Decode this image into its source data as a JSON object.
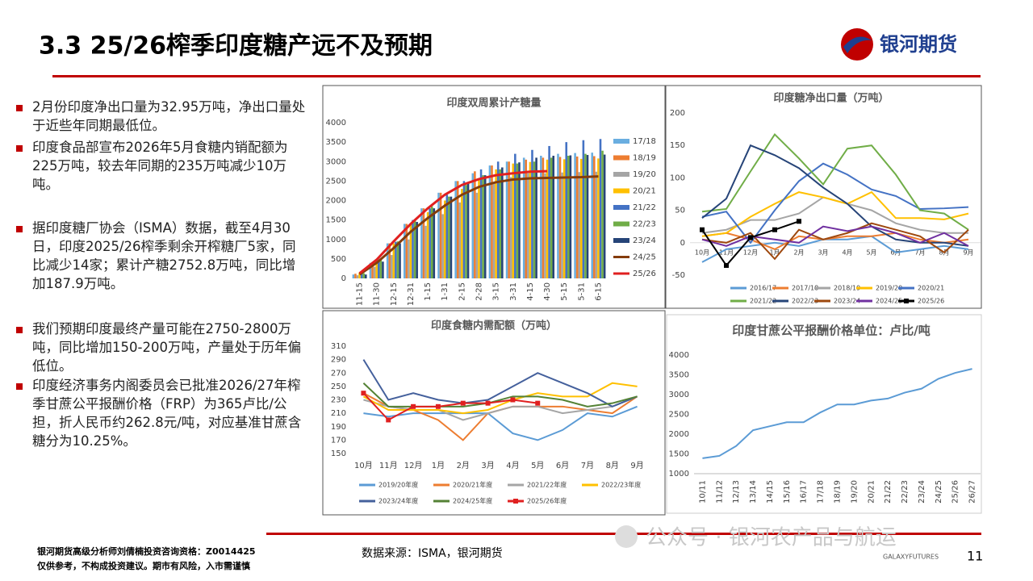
{
  "header": {
    "title": "3.3  25/26榨季印度糖产远不及预期",
    "logo": "银河期货"
  },
  "bullets": [
    "2月份印度净出口量为32.95万吨，净出口量处于近些年同期最低位。",
    "印度食品部宣布2026年5月食糖内销配额为225万吨，较去年同期的235万吨减少10万吨。",
    "据印度糖厂协会（ISMA）数据，截至4月30日，印度2025/26榨季剩余开榨糖厂5家，同比减少14家；累计产糖2752.8万吨，同比增加187.9万吨。",
    "我们预期印度最终产量可能在2750-2800万吨，同比增加150-200万吨，产量处于历年偏低位。",
    "印度经济事务内阁委员会已批准2026/27年榨季甘蔗公平报酬价格（FRP）为365卢比/公担，折人民币约262.8元/吨，对应基准甘蔗含糖分为10.25%。"
  ],
  "footer": {
    "analyst": "银河期货高级分析师刘倩楠投资咨询资格：Z0014425",
    "disclaimer": "仅供参考，不构成投资建议。期市有风险，入市需谨慎",
    "source": "数据来源：ISMA，银河期货",
    "page": "11",
    "watermark": "公众号 · 银河农产品与航运",
    "brand": "GALAXYFUTURES"
  },
  "chart_data": [
    {
      "type": "bar",
      "title": "印度双周累计产糖量",
      "legend": "right",
      "categories": [
        "11-15",
        "11-30",
        "12-15",
        "12-31",
        "1-15",
        "1-31",
        "2-15",
        "2-28",
        "3-15",
        "3-31",
        "4-15",
        "4-30",
        "5-15",
        "5-31",
        "6-15"
      ],
      "ylim": [
        0,
        4000
      ],
      "yticks": [
        0,
        500,
        1000,
        1500,
        2000,
        2500,
        3000,
        3500,
        4000
      ],
      "series": [
        {
          "name": "17/18",
          "color": "#6aaee0",
          "values": [
            100,
            400,
            900,
            1400,
            1800,
            2200,
            2500,
            2700,
            2900,
            3000,
            3100,
            3150,
            3200,
            3220,
            3230
          ]
        },
        {
          "name": "18/19",
          "color": "#ed7d31",
          "values": [
            120,
            420,
            900,
            1400,
            1800,
            2200,
            2500,
            2750,
            2900,
            3000,
            3050,
            3100,
            3120,
            3130,
            3140
          ]
        },
        {
          "name": "19/20",
          "color": "#a5a5a5",
          "values": [
            80,
            300,
            600,
            1000,
            1350,
            1650,
            1950,
            2200,
            2450,
            2600,
            2700,
            2700,
            2720,
            2730,
            2740
          ]
        },
        {
          "name": "20/21",
          "color": "#ffc000",
          "values": [
            150,
            450,
            900,
            1400,
            1700,
            2000,
            2300,
            2550,
            2800,
            2950,
            2990,
            3050,
            3060,
            3070,
            3080
          ]
        },
        {
          "name": "21/22",
          "color": "#4472c4",
          "values": [
            110,
            470,
            940,
            1500,
            1800,
            2150,
            2500,
            2800,
            3000,
            3200,
            3300,
            3400,
            3500,
            3550,
            3580
          ]
        },
        {
          "name": "22/23",
          "color": "#70ad47",
          "values": [
            130,
            480,
            950,
            1500,
            1850,
            2100,
            2400,
            2650,
            2800,
            2950,
            3000,
            3100,
            3150,
            3200,
            3280
          ]
        },
        {
          "name": "23/24",
          "color": "#264478",
          "values": [
            100,
            430,
            900,
            1450,
            1800,
            2100,
            2450,
            2650,
            2850,
            2980,
            3100,
            3150,
            3160,
            3170,
            3180
          ]
        },
        {
          "name": "24/25",
          "color": "#843c0c",
          "type": "line",
          "values": [
            100,
            400,
            780,
            1200,
            1550,
            1870,
            2150,
            2350,
            2470,
            2540,
            2570,
            2580,
            2590,
            2600,
            2620
          ]
        },
        {
          "name": "25/26",
          "color": "#e02020",
          "type": "line",
          "values": [
            130,
            480,
            950,
            1400,
            1800,
            2150,
            2400,
            2550,
            2650,
            2700,
            2740,
            2753,
            null,
            null,
            null
          ]
        }
      ]
    },
    {
      "type": "line",
      "title": "印度糖净出口量（万吨）",
      "legend": "bottom",
      "categories": [
        "10月",
        "11月",
        "12月",
        "1月",
        "2月",
        "3月",
        "4月",
        "5月",
        "6月",
        "7月",
        "8月",
        "9月"
      ],
      "ylim": [
        -50,
        200
      ],
      "yticks": [
        -50,
        0,
        50,
        100,
        150,
        200
      ],
      "series": [
        {
          "name": "2016/17",
          "color": "#5b9bd5",
          "values": [
            -30,
            -10,
            -5,
            0,
            -5,
            5,
            5,
            10,
            -15,
            -10,
            -5,
            -10
          ]
        },
        {
          "name": "2017/18",
          "color": "#ed7d31",
          "values": [
            10,
            15,
            5,
            -10,
            10,
            5,
            10,
            10,
            15,
            5,
            0,
            5
          ]
        },
        {
          "name": "2018/19",
          "color": "#a5a5a5",
          "values": [
            15,
            20,
            35,
            35,
            45,
            70,
            60,
            50,
            30,
            20,
            15,
            15
          ]
        },
        {
          "name": "2019/20",
          "color": "#ffc000",
          "values": [
            10,
            15,
            40,
            60,
            78,
            70,
            60,
            78,
            38,
            38,
            36,
            45
          ]
        },
        {
          "name": "2020/21",
          "color": "#4472c4",
          "values": [
            40,
            48,
            0,
            50,
            95,
            122,
            105,
            82,
            72,
            52,
            53,
            55
          ]
        },
        {
          "name": "2021/22",
          "color": "#70ad47",
          "values": [
            48,
            52,
            110,
            167,
            130,
            90,
            145,
            150,
            105,
            50,
            45,
            20
          ]
        },
        {
          "name": "2022/23",
          "color": "#264478",
          "values": [
            38,
            68,
            150,
            135,
            115,
            85,
            60,
            25,
            5,
            0,
            0,
            -5
          ]
        },
        {
          "name": "2023/24",
          "color": "#9e480e",
          "values": [
            5,
            0,
            15,
            -25,
            20,
            5,
            15,
            30,
            20,
            10,
            -15,
            20
          ]
        },
        {
          "name": "2024/25",
          "color": "#7030a0",
          "values": [
            5,
            -5,
            10,
            5,
            0,
            25,
            18,
            25,
            15,
            0,
            15,
            -5
          ]
        },
        {
          "name": "2025/26",
          "color": "#000000",
          "marker": "square",
          "values": [
            20,
            -35,
            8,
            20,
            33,
            null,
            null,
            null,
            null,
            null,
            null,
            null
          ]
        }
      ]
    },
    {
      "type": "line",
      "title": "印度食糖内需配额（万吨）",
      "legend": "bottom",
      "categories": [
        "10月",
        "11月",
        "12月",
        "1月",
        "2月",
        "3月",
        "4月",
        "5月",
        "6月",
        "7月",
        "8月",
        "9月"
      ],
      "ylim": [
        150,
        310
      ],
      "yticks": [
        150,
        170,
        190,
        210,
        230,
        250,
        270,
        290,
        310
      ],
      "series": [
        {
          "name": "2019/20年度",
          "color": "#5b9bd5",
          "values": [
            210,
            205,
            210,
            210,
            210,
            210,
            180,
            170,
            185,
            210,
            205,
            220
          ]
        },
        {
          "name": "2020/21年度",
          "color": "#ed7d31",
          "values": [
            240,
            220,
            215,
            200,
            170,
            210,
            220,
            220,
            220,
            215,
            210,
            235
          ]
        },
        {
          "name": "2021/22年度",
          "color": "#a5a5a5",
          "values": [
            230,
            220,
            215,
            215,
            200,
            210,
            220,
            220,
            210,
            215,
            220,
            235
          ]
        },
        {
          "name": "2022/23年度",
          "color": "#ffc000",
          "values": [
            235,
            215,
            215,
            215,
            210,
            215,
            230,
            240,
            235,
            235,
            255,
            250
          ]
        },
        {
          "name": "2023/24年度",
          "color": "#44609c",
          "values": [
            290,
            230,
            240,
            230,
            225,
            230,
            250,
            270,
            255,
            240,
            220,
            235
          ]
        },
        {
          "name": "2024/25年度",
          "color": "#548235",
          "values": [
            255,
            220,
            220,
            220,
            220,
            225,
            235,
            235,
            230,
            220,
            225,
            235
          ]
        },
        {
          "name": "2025/26年度",
          "color": "#e02020",
          "marker": "square",
          "values": [
            240,
            200,
            220,
            220,
            225,
            225,
            230,
            225,
            null,
            null,
            null,
            null
          ]
        }
      ]
    },
    {
      "type": "line",
      "title": "印度甘蔗公平报酬价格单位：卢比/吨",
      "categories": [
        "10/11",
        "11/12",
        "12/13",
        "13/14",
        "14/15",
        "15/16",
        "16/17",
        "17/18",
        "18/19",
        "19/20",
        "20/21",
        "21/22",
        "22/23",
        "23/24",
        "24/25",
        "25/26",
        "26/27"
      ],
      "ylim": [
        1000,
        4000
      ],
      "yticks": [
        1000,
        1500,
        2000,
        2500,
        3000,
        3500,
        4000
      ],
      "color": "#5b9bd5",
      "values": [
        1390,
        1450,
        1700,
        2100,
        2200,
        2300,
        2300,
        2550,
        2750,
        2750,
        2850,
        2900,
        3050,
        3150,
        3400,
        3550,
        3650
      ]
    }
  ]
}
